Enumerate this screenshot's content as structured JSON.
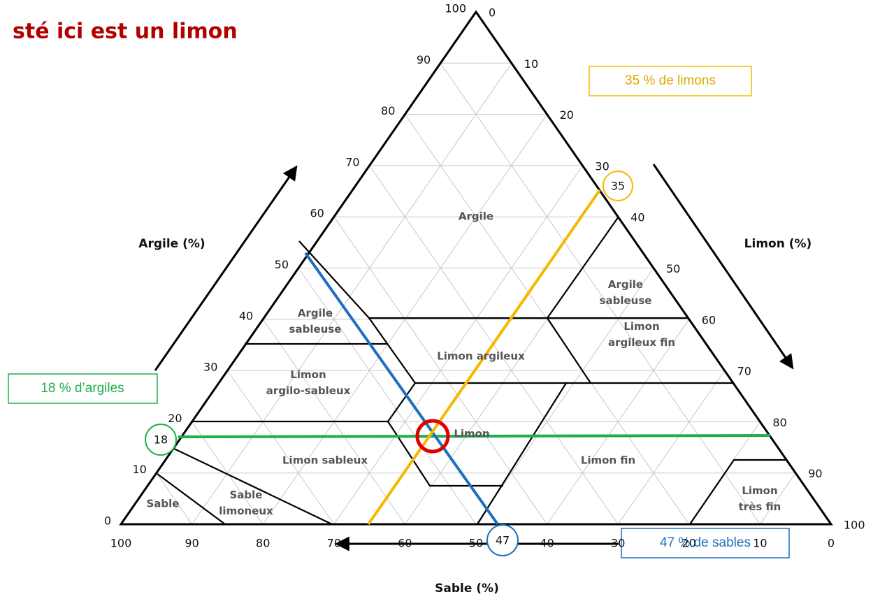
{
  "header": {
    "title": "sté ici est un limon"
  },
  "axes": {
    "argile": {
      "label": "Argile (%)",
      "ticks": [
        0,
        10,
        20,
        30,
        40,
        50,
        60,
        70,
        80,
        90,
        100
      ]
    },
    "limon": {
      "label": "Limon (%)",
      "ticks": [
        0,
        10,
        20,
        30,
        40,
        50,
        60,
        70,
        80,
        90,
        100
      ]
    },
    "sable": {
      "label": "Sable (%)",
      "ticks": [
        100,
        90,
        80,
        70,
        60,
        50,
        40,
        30,
        20,
        10,
        0
      ]
    }
  },
  "regions": [
    {
      "label": "Argile"
    },
    {
      "label": "Argile sableuse",
      "lines": [
        "Argile",
        "sableuse"
      ]
    },
    {
      "label": "Argile sableuse",
      "lines": [
        "Argile",
        "sableuse"
      ]
    },
    {
      "label": "Limon argileux"
    },
    {
      "label": "Limon argileux fin",
      "lines": [
        "Limon",
        "argileux fin"
      ]
    },
    {
      "label": "Limon argilo-sableux",
      "lines": [
        "Limon",
        "argilo-sableux"
      ]
    },
    {
      "label": "Limon"
    },
    {
      "label": "Limon sableux"
    },
    {
      "label": "Limon fin"
    },
    {
      "label": "Sable"
    },
    {
      "label": "Sable limoneux",
      "lines": [
        "Sable",
        "limoneux"
      ]
    },
    {
      "label": "Limon très fin",
      "lines": [
        "Limon",
        "très fin"
      ]
    }
  ],
  "annotations": {
    "argile": {
      "box": "18 % d’argiles",
      "circle": "18"
    },
    "limon": {
      "box": "35 % de limons",
      "circle": "35"
    },
    "sable": {
      "box": "47 % de sables",
      "circle": "47"
    }
  }
}
